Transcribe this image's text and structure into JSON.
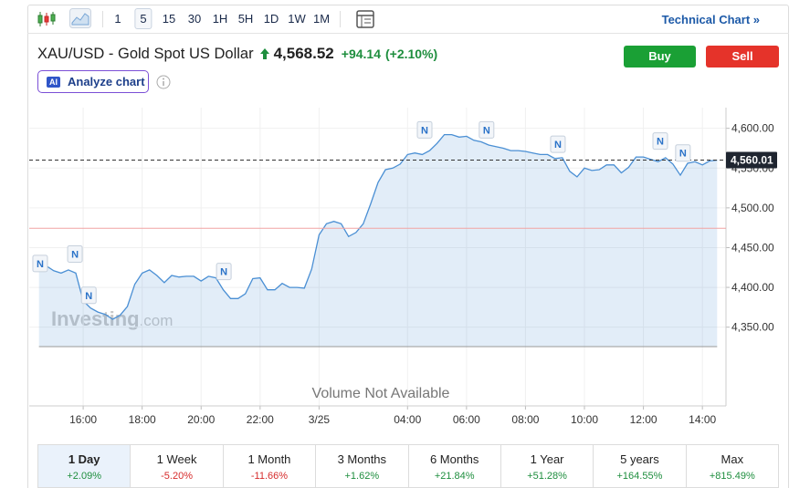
{
  "toolbar": {
    "intervals": [
      "1",
      "5",
      "15",
      "30",
      "1H",
      "5H",
      "1D",
      "1W",
      "1M"
    ],
    "selected_interval": "5",
    "technical_link": "Technical Chart »"
  },
  "header": {
    "symbol": "XAU/USD - Gold Spot US Dollar",
    "price": "4,568.52",
    "change": "+94.14",
    "change_pct": "(+2.10%)",
    "buy": "Buy",
    "sell": "Sell",
    "ai_badge": "AI",
    "analyze": "Analyze chart"
  },
  "chart_data": {
    "type": "area",
    "color": "#4a8fd4",
    "grid": true,
    "watermark": {
      "brand": "Investing",
      "suffix": ".com"
    },
    "volume_note": "Volume Not Available",
    "xlim": [
      -1.83,
      21.8
    ],
    "xticks": [
      {
        "value": 0,
        "label": "16:00"
      },
      {
        "value": 2,
        "label": "18:00"
      },
      {
        "value": 4,
        "label": "20:00"
      },
      {
        "value": 6,
        "label": "22:00"
      },
      {
        "value": 8,
        "label": "3/25"
      },
      {
        "value": 11,
        "label": "04:00"
      },
      {
        "value": 13,
        "label": "06:00"
      },
      {
        "value": 15,
        "label": "08:00"
      },
      {
        "value": 17,
        "label": "10:00"
      },
      {
        "value": 19,
        "label": "12:00"
      },
      {
        "value": 21,
        "label": "14:00"
      }
    ],
    "ylim": [
      4251,
      4626
    ],
    "yticks": [
      {
        "value": 4350,
        "label": "4,350.00"
      },
      {
        "value": 4400,
        "label": "4,400.00"
      },
      {
        "value": 4450,
        "label": "4,450.00"
      },
      {
        "value": 4500,
        "label": "4,500.00"
      },
      {
        "value": 4550,
        "label": "4,550.00"
      },
      {
        "value": 4600,
        "label": "4,600.00"
      }
    ],
    "current_line": {
      "value": 4560.01,
      "label": "4,560.01"
    },
    "reference_line": 4474.38,
    "x": [
      -1.5,
      -1.25,
      -1,
      -0.75,
      -0.5,
      -0.25,
      0,
      0.25,
      0.5,
      0.75,
      1,
      1.25,
      1.5,
      1.75,
      2,
      2.25,
      2.5,
      2.75,
      3,
      3.25,
      3.5,
      3.75,
      4,
      4.25,
      4.5,
      4.75,
      5,
      5.25,
      5.5,
      5.75,
      6,
      6.25,
      6.5,
      6.75,
      7,
      7.25,
      7.5,
      7.75,
      8,
      8.25,
      8.5,
      8.75,
      9,
      9.25,
      9.5,
      9.75,
      10,
      10.25,
      10.5,
      10.75,
      11,
      11.25,
      11.5,
      11.75,
      12,
      12.25,
      12.5,
      12.75,
      13,
      13.25,
      13.5,
      13.75,
      14,
      14.25,
      14.5,
      14.75,
      15,
      15.25,
      15.5,
      15.75,
      16,
      16.25,
      16.5,
      16.75,
      17,
      17.25,
      17.5,
      17.75,
      18,
      18.25,
      18.5,
      18.75,
      19,
      19.25,
      19.5,
      19.75,
      20,
      20.25,
      20.5,
      20.75,
      21,
      21.25,
      21.5
    ],
    "values": [
      4422,
      4427,
      4421,
      4418,
      4422,
      4418,
      4383,
      4374,
      4369,
      4366,
      4360,
      4365,
      4376,
      4404,
      4418,
      4422,
      4415,
      4406,
      4415,
      4413,
      4414,
      4414,
      4408,
      4414,
      4412,
      4397,
      4386,
      4386,
      4392,
      4411,
      4412,
      4397,
      4397,
      4405,
      4400,
      4400,
      4399,
      4423,
      4466,
      4480,
      4483,
      4480,
      4464,
      4469,
      4480,
      4505,
      4532,
      4548,
      4550,
      4555,
      4567,
      4569,
      4567,
      4572,
      4581,
      4592,
      4592,
      4589,
      4590,
      4585,
      4583,
      4579,
      4577,
      4575,
      4572,
      4572,
      4571,
      4569,
      4567,
      4567,
      4562,
      4563,
      4546,
      4539,
      4550,
      4547,
      4548,
      4554,
      4554,
      4544,
      4551,
      4564,
      4564,
      4561,
      4558,
      4563,
      4555,
      4541,
      4556,
      4558,
      4554,
      4559,
      4560
    ],
    "markers": [
      {
        "x": -1.46,
        "y": 4430,
        "label": "N"
      },
      {
        "x": -0.28,
        "y": 4442,
        "label": "N"
      },
      {
        "x": 0.19,
        "y": 4390,
        "label": "N"
      },
      {
        "x": 4.77,
        "y": 4420,
        "label": "N"
      },
      {
        "x": 11.58,
        "y": 4598,
        "label": "N"
      },
      {
        "x": 13.68,
        "y": 4598,
        "label": "N"
      },
      {
        "x": 16.1,
        "y": 4580,
        "label": "N"
      },
      {
        "x": 19.57,
        "y": 4584,
        "label": "N"
      },
      {
        "x": 20.34,
        "y": 4569,
        "label": "N"
      }
    ]
  },
  "periods": [
    {
      "label": "1 Day",
      "change": "+2.09%"
    },
    {
      "label": "1 Week",
      "change": "-5.20%"
    },
    {
      "label": "1 Month",
      "change": "-11.66%"
    },
    {
      "label": "3 Months",
      "change": "+1.62%"
    },
    {
      "label": "6 Months",
      "change": "+21.84%"
    },
    {
      "label": "1 Year",
      "change": "+51.28%"
    },
    {
      "label": "5 years",
      "change": "+164.55%"
    },
    {
      "label": "Max",
      "change": "+815.49%"
    }
  ]
}
